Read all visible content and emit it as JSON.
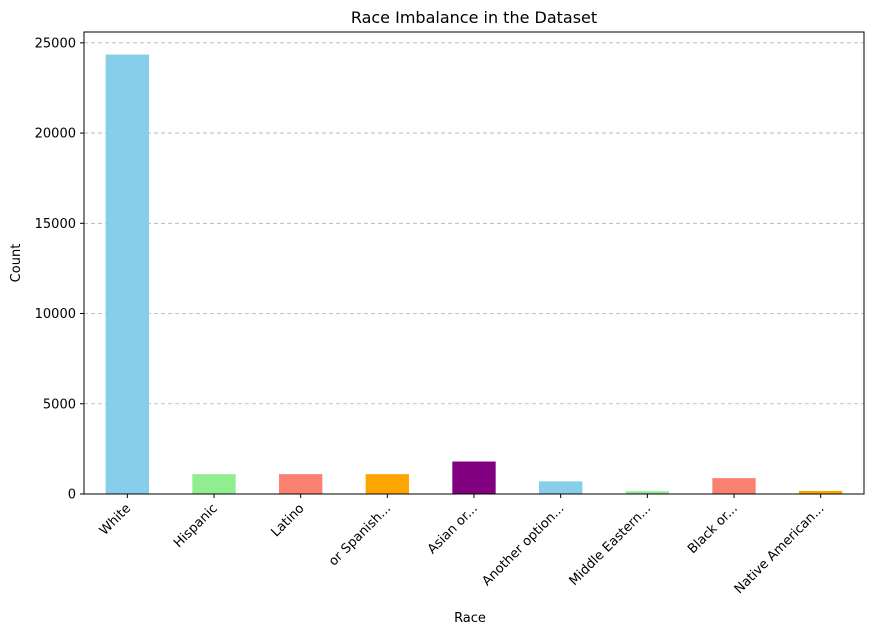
{
  "chart_data": {
    "type": "bar",
    "title": "Race Imbalance in the Dataset",
    "xlabel": "Race",
    "ylabel": "Count",
    "categories": [
      "White",
      "Hispanic",
      "Latino",
      "or Spanish...",
      "Asian or...",
      "Another option...",
      "Middle Eastern...",
      "Black or...",
      "Native American..."
    ],
    "values": [
      24350,
      1100,
      1100,
      1100,
      1800,
      700,
      150,
      880,
      170
    ],
    "bar_colors": [
      "#87ceeb",
      "#90ee90",
      "#fa8072",
      "#ffa500",
      "#800080",
      "#87ceeb",
      "#90ee90",
      "#fa8072",
      "#ffa500"
    ],
    "ylim": [
      0,
      25600
    ],
    "yticks": [
      0,
      5000,
      10000,
      15000,
      20000,
      25000
    ],
    "ytick_labels": [
      "0",
      "5000",
      "10000",
      "15000",
      "20000",
      "25000"
    ],
    "grid": "y-dashed",
    "legend": "none"
  }
}
